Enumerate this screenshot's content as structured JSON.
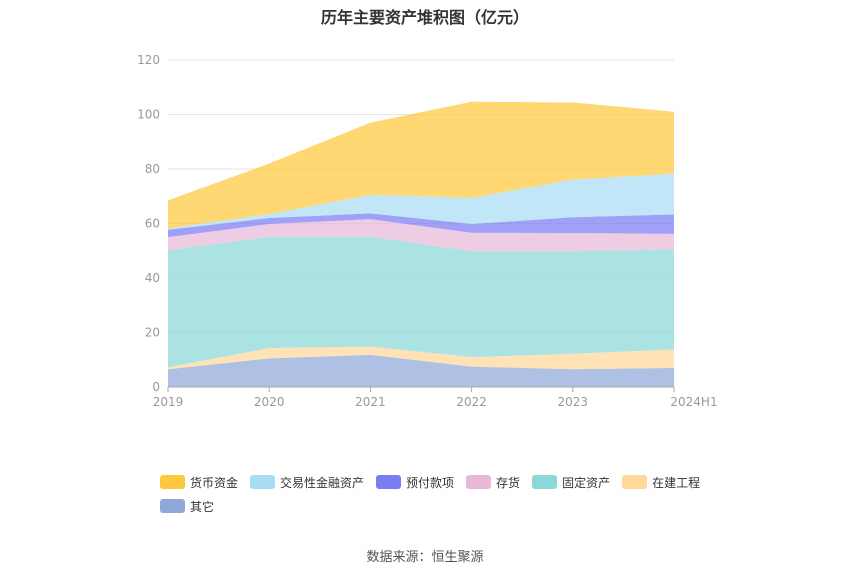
{
  "chart_data": {
    "type": "area",
    "stacked": true,
    "title": "历年主要资产堆积图（亿元）",
    "categories": [
      "2019",
      "2020",
      "2021",
      "2022",
      "2023",
      "2024H1"
    ],
    "ylim": [
      0,
      120
    ],
    "yticks": [
      0,
      20,
      40,
      60,
      80,
      100,
      120
    ],
    "grid": true,
    "legend_position": "bottom",
    "series": [
      {
        "name": "其它",
        "color": "#8fa8d8",
        "values": [
          6.5,
          10.5,
          11.8,
          7.5,
          6.5,
          7.0
        ]
      },
      {
        "name": "在建工程",
        "color": "#ffd89a",
        "values": [
          0.7,
          3.8,
          3.0,
          3.5,
          5.7,
          6.8
        ]
      },
      {
        "name": "固定资产",
        "color": "#8ad8d8",
        "values": [
          43.0,
          40.8,
          40.4,
          38.8,
          37.6,
          36.7
        ]
      },
      {
        "name": "存货",
        "color": "#e8b8d8",
        "values": [
          4.8,
          4.7,
          6.4,
          6.8,
          6.7,
          5.7
        ]
      },
      {
        "name": "预付款项",
        "color": "#7b7cf2",
        "values": [
          2.7,
          2.2,
          2.1,
          3.2,
          5.8,
          7.1
        ]
      },
      {
        "name": "交易性金融资产",
        "color": "#a8dcf5",
        "values": [
          0.5,
          1.5,
          6.8,
          9.7,
          13.8,
          15.0
        ]
      },
      {
        "name": "货币资金",
        "color": "#ffc83d",
        "values": [
          10.3,
          18.5,
          26.5,
          35.2,
          28.3,
          22.7
        ]
      }
    ]
  },
  "legend_order": [
    6,
    5,
    4,
    3,
    2,
    1,
    0
  ],
  "source_text": "数据来源：恒生聚源"
}
